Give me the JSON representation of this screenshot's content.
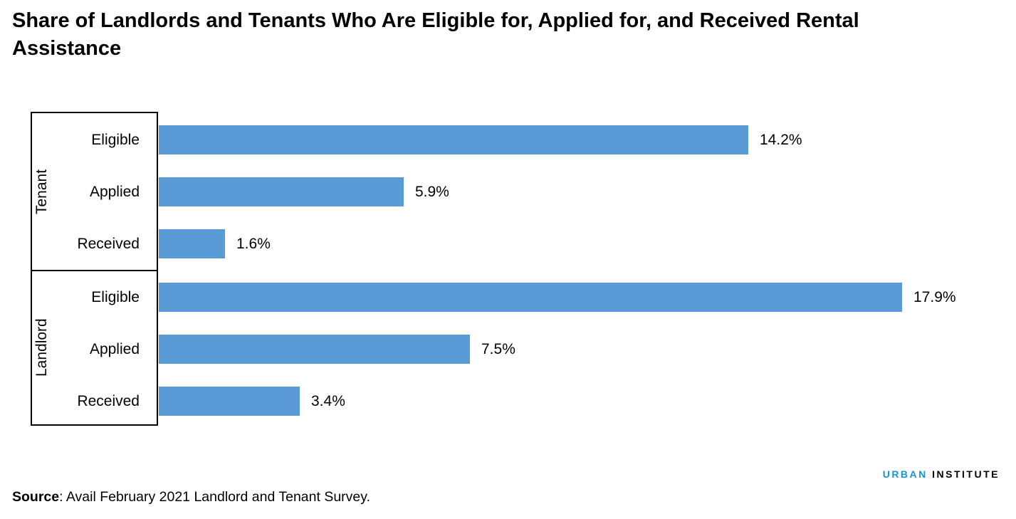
{
  "title": "Share of Landlords and Tenants Who Are Eligible for, Applied for, and Received Rental Assistance",
  "chart_data": {
    "type": "bar",
    "orientation": "horizontal",
    "title": "Share of Landlords and Tenants Who Are Eligible for, Applied for, and Received Rental Assistance",
    "groups": [
      {
        "name": "Tenant",
        "categories": [
          "Eligible",
          "Applied",
          "Received"
        ],
        "values": [
          14.2,
          5.9,
          1.6
        ]
      },
      {
        "name": "Landlord",
        "categories": [
          "Eligible",
          "Applied",
          "Received"
        ],
        "values": [
          17.9,
          7.5,
          3.4
        ]
      }
    ],
    "value_labels": [
      "14.2%",
      "5.9%",
      "1.6%",
      "17.9%",
      "7.5%",
      "3.4%"
    ],
    "value_suffix": "%",
    "xlim": [
      0,
      18.5
    ],
    "grid": false,
    "legend": false,
    "bar_color": "#5b9bd5",
    "axis_color": "#000000"
  },
  "logo": {
    "first": "URBAN",
    "second": "INSTITUTE",
    "first_color": "#1696d2",
    "second_color": "#000000"
  },
  "source": {
    "label": "Source",
    "text": ": Avail February 2021 Landlord and Tenant Survey."
  }
}
